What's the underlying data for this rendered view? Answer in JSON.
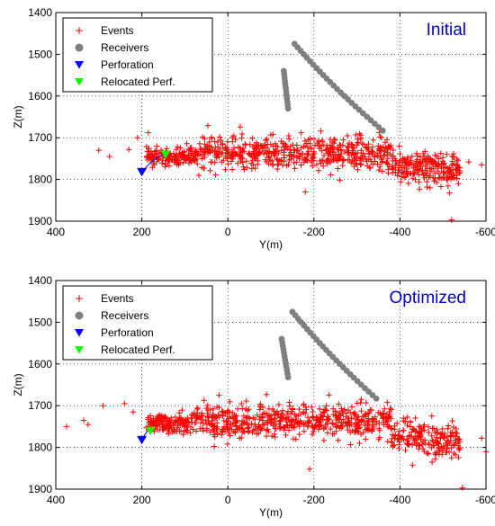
{
  "chart_data": [
    {
      "type": "scatter",
      "title": "Initial",
      "xlabel": "Y(m)",
      "ylabel": "Z(m)",
      "xlim": [
        400,
        -600
      ],
      "ylim": [
        1900,
        1400
      ],
      "xticks": [
        "400",
        "200",
        "0",
        "-200",
        "-400",
        "-600"
      ],
      "yticks": [
        "1400",
        "1500",
        "1600",
        "1700",
        "1800",
        "1900"
      ],
      "grid": true,
      "legend_position": "top-left",
      "legend": [
        "Events",
        "Receivers",
        "Perforation",
        "Relocated Perf."
      ],
      "colors": {
        "events": "#ff0000",
        "receivers": "#808080",
        "perforation": "#0000ff",
        "relocated": "#00ff00",
        "title": "#0000cc"
      },
      "receivers_a": {
        "y_start": -155,
        "y_end": -360,
        "z_start": 1475,
        "z_end": 1683,
        "count": 26
      },
      "receivers_b": {
        "y_start": -130,
        "y_end": -140,
        "z_start": 1540,
        "z_end": 1630,
        "count": 12
      },
      "perforation": {
        "y": 200,
        "z": 1782
      },
      "relocated_perf": {
        "y": 145,
        "z": 1740
      },
      "events_outliers": [
        {
          "y": 300,
          "z": 1730
        },
        {
          "y": 275,
          "z": 1745
        },
        {
          "y": 230,
          "z": 1728
        },
        {
          "y": 210,
          "z": 1700
        },
        {
          "y": 165,
          "z": 1720
        },
        {
          "y": 185,
          "z": 1688
        },
        {
          "y": -520,
          "z": 1897
        },
        {
          "y": -180,
          "z": 1830
        },
        {
          "y": -330,
          "z": 1655
        },
        {
          "y": -560,
          "z": 1758
        },
        {
          "y": -590,
          "z": 1765
        },
        {
          "y": -470,
          "z": 1820
        }
      ]
    },
    {
      "type": "scatter",
      "title": "Optimized",
      "xlabel": "Y(m)",
      "ylabel": "Z(m)",
      "xlim": [
        400,
        -600
      ],
      "ylim": [
        1900,
        1400
      ],
      "xticks": [
        "400",
        "200",
        "0",
        "-200",
        "-400",
        "-600"
      ],
      "yticks": [
        "1400",
        "1500",
        "1600",
        "1700",
        "1800",
        "1900"
      ],
      "grid": true,
      "legend_position": "top-left",
      "legend": [
        "Events",
        "Receivers",
        "Perforation",
        "Relocated Perf."
      ],
      "colors": {
        "events": "#ff0000",
        "receivers": "#808080",
        "perforation": "#0000ff",
        "relocated": "#00ff00",
        "title": "#0000cc"
      },
      "receivers_a": {
        "y_start": -150,
        "y_end": -345,
        "z_start": 1475,
        "z_end": 1683,
        "count": 26
      },
      "receivers_b": {
        "y_start": -125,
        "y_end": -140,
        "z_start": 1540,
        "z_end": 1632,
        "count": 12
      },
      "perforation": {
        "y": 200,
        "z": 1782
      },
      "relocated_perf": {
        "y": 180,
        "z": 1760
      },
      "events_outliers": [
        {
          "y": 375,
          "z": 1750
        },
        {
          "y": 335,
          "z": 1735
        },
        {
          "y": 325,
          "z": 1745
        },
        {
          "y": 290,
          "z": 1700
        },
        {
          "y": 240,
          "z": 1695
        },
        {
          "y": 220,
          "z": 1715
        },
        {
          "y": -545,
          "z": 1897
        },
        {
          "y": -190,
          "z": 1852
        },
        {
          "y": -310,
          "z": 1685
        },
        {
          "y": -590,
          "z": 1778
        },
        {
          "y": -600,
          "z": 1810
        },
        {
          "y": -520,
          "z": 1825
        }
      ]
    }
  ]
}
